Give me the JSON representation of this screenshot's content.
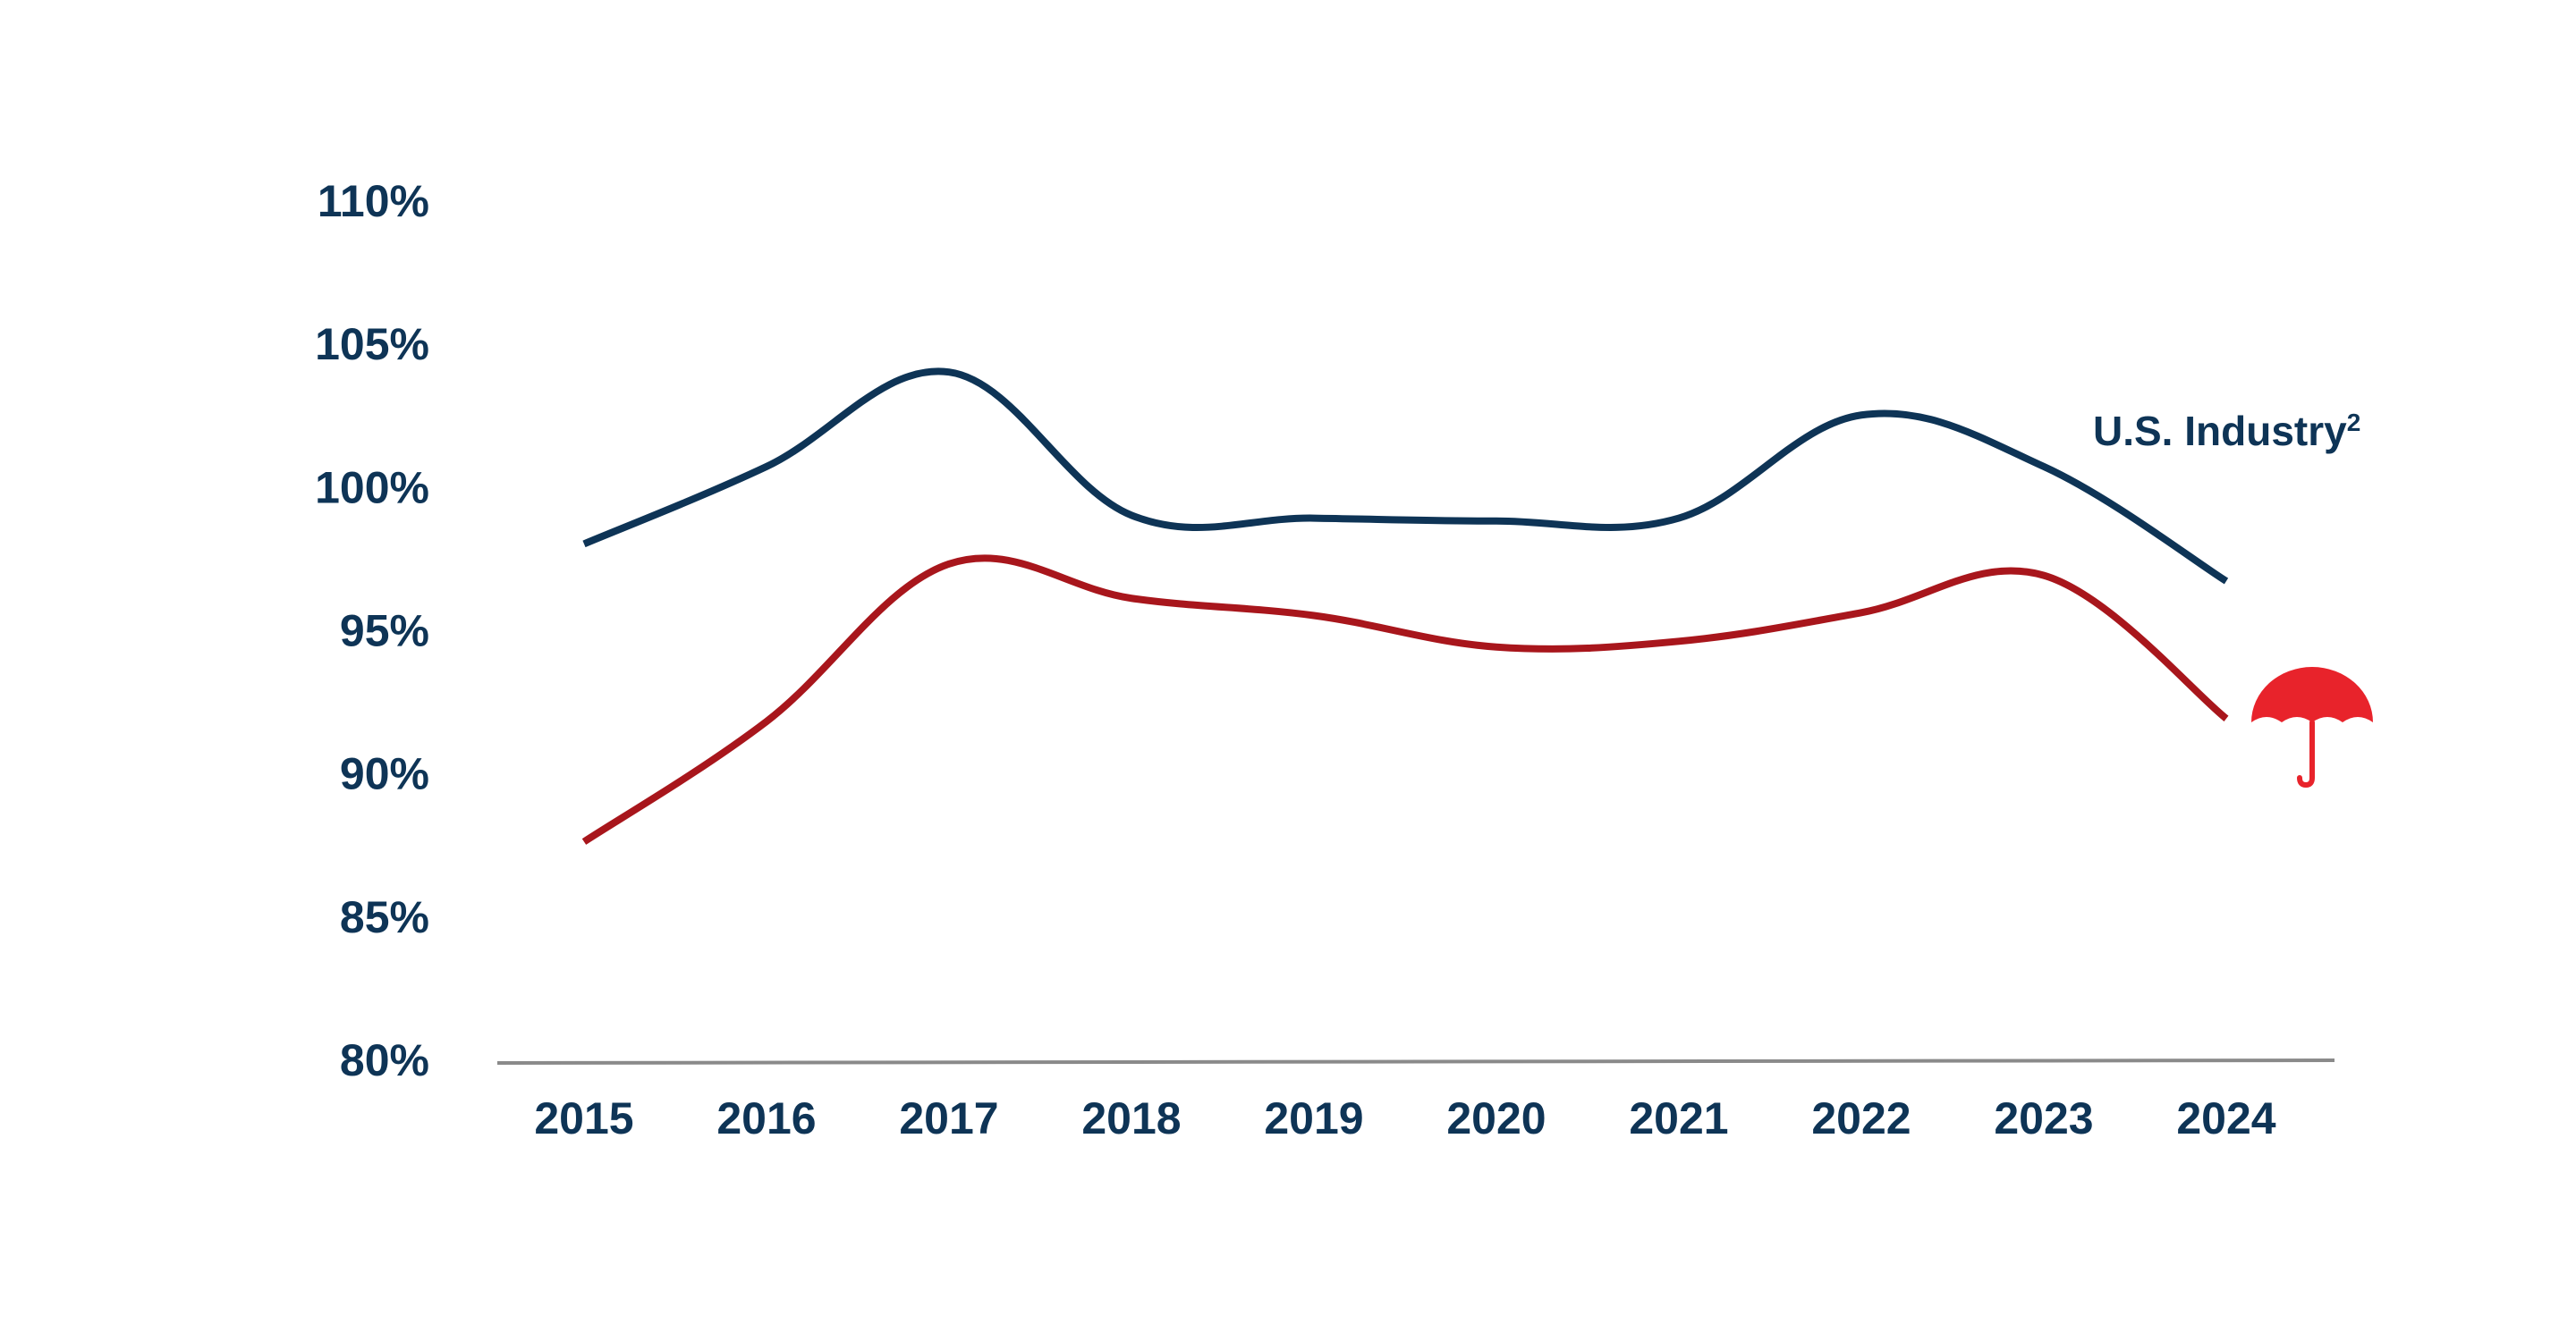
{
  "chart_data": {
    "type": "line",
    "title": "",
    "xlabel": "",
    "ylabel": "",
    "x": [
      "2015",
      "2016",
      "2017",
      "2018",
      "2019",
      "2020",
      "2021",
      "2022",
      "2023",
      "2024"
    ],
    "ylim": [
      80,
      110
    ],
    "y_ticks": [
      "80%",
      "85%",
      "90%",
      "95%",
      "100%",
      "105%",
      "110%"
    ],
    "y_tick_values": [
      80,
      85,
      90,
      95,
      100,
      105,
      110
    ],
    "grid": false,
    "series": [
      {
        "name": "U.S. Industry",
        "name_superscript": "2",
        "color": "#0e3456",
        "values": [
          98.0,
          100.7,
          104.0,
          99.0,
          98.9,
          98.8,
          98.9,
          102.5,
          100.7,
          96.7
        ]
      },
      {
        "name": "",
        "color": "#a8161c",
        "values": [
          87.6,
          91.8,
          97.3,
          96.1,
          95.5,
          94.4,
          94.6,
          95.6,
          96.9,
          91.9
        ]
      }
    ],
    "series_marker": {
      "icon": "umbrella-icon",
      "color": "#e8232b",
      "series_index": 1
    }
  }
}
